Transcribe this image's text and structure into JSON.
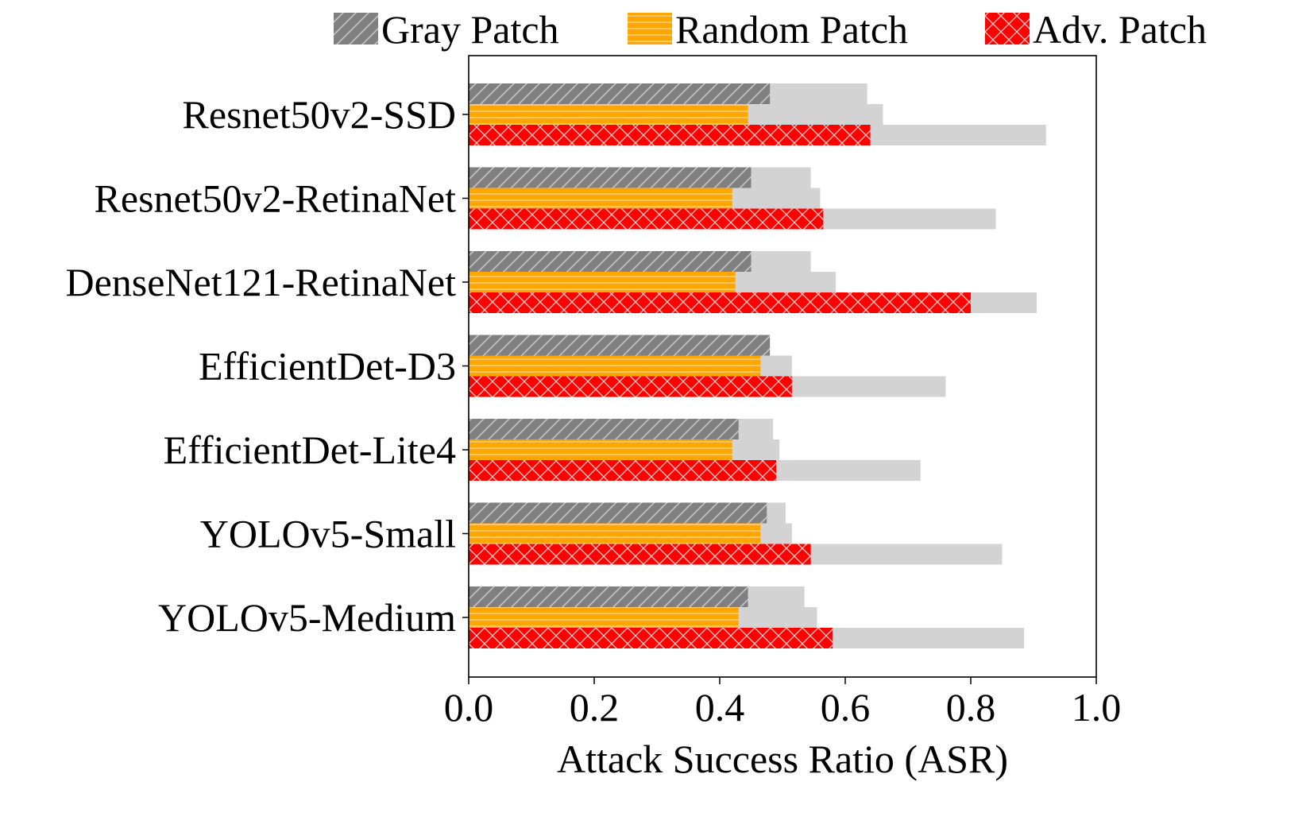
{
  "chart_data": {
    "type": "bar",
    "orientation": "horizontal",
    "categories": [
      "Resnet50v2-SSD",
      "Resnet50v2-RetinaNet",
      "DenseNet121-RetinaNet",
      "EfficientDet-D3",
      "EfficientDet-Lite4",
      "YOLOv5-Small",
      "YOLOv5-Medium"
    ],
    "series": [
      {
        "name": "Gray Patch",
        "color": "#808080",
        "hatch": "diagonal",
        "values": [
          0.48,
          0.45,
          0.45,
          0.48,
          0.43,
          0.475,
          0.445
        ],
        "upper": [
          0.635,
          0.545,
          0.545,
          0.48,
          0.485,
          0.505,
          0.535
        ]
      },
      {
        "name": "Random Patch",
        "color": "#FFA500",
        "hatch": "horizontal",
        "values": [
          0.445,
          0.42,
          0.425,
          0.465,
          0.42,
          0.465,
          0.43
        ],
        "upper": [
          0.66,
          0.56,
          0.585,
          0.515,
          0.495,
          0.515,
          0.555
        ]
      },
      {
        "name": "Adv. Patch",
        "color": "#FF0000",
        "hatch": "cross",
        "values": [
          0.64,
          0.565,
          0.8,
          0.515,
          0.49,
          0.545,
          0.58
        ],
        "upper": [
          0.92,
          0.84,
          0.905,
          0.76,
          0.72,
          0.85,
          0.885
        ]
      }
    ],
    "range_color": "#D3D3D3",
    "xlim": [
      0.0,
      1.0
    ],
    "xticks": [
      "0.0",
      "0.2",
      "0.4",
      "0.6",
      "0.8",
      "1.0"
    ],
    "xlabel": "Attack Success Ratio (ASR)",
    "ylabel": "",
    "title": "",
    "legend_position": "top",
    "grid": false
  }
}
